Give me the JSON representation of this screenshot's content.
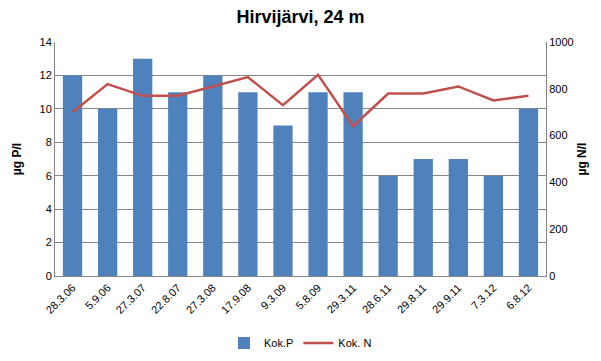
{
  "chart_data": {
    "type": "bar",
    "title": "Hirvijärvi, 24 m",
    "y_label": "µg P/l",
    "y2_label": "µg N/l",
    "categories": [
      "28.3.06",
      "5.9.06",
      "27.3.07",
      "22.8.07",
      "27.3.08",
      "17.9.08",
      "9.3.09",
      "5.8.09",
      "29.3.11",
      "28.6.11",
      "29.8.11",
      "29.9.11",
      "7.3.12",
      "6.8.12"
    ],
    "series": [
      {
        "name": "Kok.P",
        "type": "bar",
        "color": "#4f81bd",
        "values": [
          12,
          10,
          13,
          11,
          12,
          11,
          9,
          11,
          11,
          6,
          7,
          7,
          6,
          10
        ]
      },
      {
        "name": "Kok. N",
        "type": "line",
        "axis": "y2",
        "color": "#c0504d",
        "values": [
          700,
          820,
          770,
          770,
          810,
          850,
          730,
          860,
          640,
          780,
          780,
          810,
          750,
          770
        ]
      }
    ],
    "ylim": [
      0,
      14
    ],
    "yticks": [
      0,
      2,
      4,
      6,
      8,
      10,
      12,
      14
    ],
    "y2lim": [
      0,
      1000
    ],
    "y2ticks": [
      0,
      200,
      400,
      600,
      800,
      1000
    ],
    "grid": true,
    "legend": "bottom"
  }
}
